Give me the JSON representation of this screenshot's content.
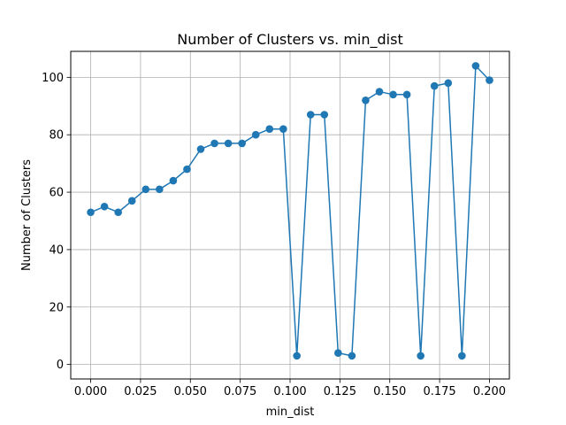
{
  "chart_data": {
    "type": "line",
    "title": "Number of Clusters vs. min_dist",
    "xlabel": "min_dist",
    "ylabel": "Number of Clusters",
    "xlim": [
      -0.01,
      0.21
    ],
    "ylim": [
      -5.05,
      109.05
    ],
    "xticks": [
      0.0,
      0.025,
      0.05,
      0.075,
      0.1,
      0.125,
      0.15,
      0.175,
      0.2
    ],
    "xtick_labels": [
      "0.000",
      "0.025",
      "0.050",
      "0.075",
      "0.100",
      "0.125",
      "0.150",
      "0.175",
      "0.200"
    ],
    "yticks": [
      0,
      20,
      40,
      60,
      80,
      100
    ],
    "ytick_labels": [
      "0",
      "20",
      "40",
      "60",
      "80",
      "100"
    ],
    "grid": true,
    "marker": "circle",
    "series": [
      {
        "color": "#1f77b4",
        "x": [
          0.0,
          0.0069,
          0.0138,
          0.0207,
          0.0276,
          0.0345,
          0.0414,
          0.0483,
          0.0552,
          0.0621,
          0.069,
          0.0759,
          0.0828,
          0.0897,
          0.0966,
          0.1034,
          0.1103,
          0.1172,
          0.1241,
          0.131,
          0.1379,
          0.1448,
          0.1517,
          0.1586,
          0.1655,
          0.1724,
          0.1793,
          0.1862,
          0.1931,
          0.2
        ],
        "y": [
          53,
          55,
          53,
          57,
          61,
          61,
          64,
          68,
          75,
          77,
          77,
          77,
          80,
          82,
          82,
          3,
          87,
          87,
          4,
          3,
          92,
          95,
          94,
          94,
          3,
          97,
          98,
          3,
          104,
          99
        ]
      }
    ]
  }
}
